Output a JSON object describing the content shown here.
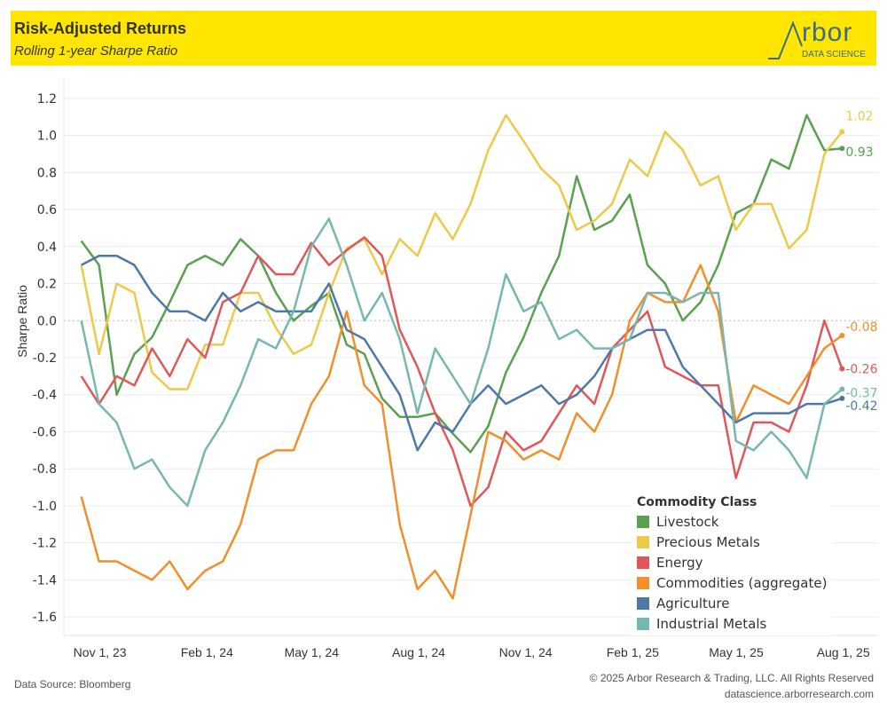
{
  "header": {
    "title": "Risk-Adjusted Returns",
    "subtitle": "Rolling 1-year Sharpe Ratio",
    "logo_word": "rbor",
    "logo_sub": "DATA SCIENCE"
  },
  "footer": {
    "source": "Data Source: Bloomberg",
    "copyright": "© 2025 Arbor Research & Trading, LLC. All Rights Reserved",
    "website": "datascience.arborresearch.com"
  },
  "colors": {
    "header_bg": "#FFE600",
    "Livestock": "#59A14F",
    "Precious Metals": "#EDC948",
    "Energy": "#E15759",
    "Commodities (aggregate)": "#F28E2B",
    "Agriculture": "#4E79A7",
    "Industrial Metals": "#76B7B2"
  },
  "chart_data": {
    "type": "line",
    "title": "Risk-Adjusted Returns",
    "subtitle": "Rolling 1-year Sharpe Ratio",
    "xlabel": "",
    "ylabel": "Sharpe Ratio",
    "ylim": [
      -1.7,
      1.3
    ],
    "yticks": [
      "1.2",
      "1.0",
      "0.8",
      "0.6",
      "0.4",
      "0.2",
      "0.0",
      "-0.2",
      "-0.4",
      "-0.6",
      "-0.8",
      "-1.0",
      "-1.2",
      "-1.4",
      "-1.6"
    ],
    "ytick_values": [
      1.2,
      1.0,
      0.8,
      0.6,
      0.4,
      0.2,
      0.0,
      -0.2,
      -0.4,
      -0.6,
      -0.8,
      -1.0,
      -1.2,
      -1.4,
      -1.6
    ],
    "xticks": [
      "Nov 1, 23",
      "Feb 1, 24",
      "May 1, 24",
      "Aug 1, 24",
      "Nov 1, 24",
      "Feb 1, 25",
      "May 1, 25",
      "Aug 1, 25"
    ],
    "xtick_dates": [
      "2023-11-01",
      "2024-02-01",
      "2024-05-01",
      "2024-08-01",
      "2024-11-01",
      "2025-02-01",
      "2025-05-01",
      "2025-08-01"
    ],
    "x_start": "2023-10-16",
    "x_end": "2025-07-31",
    "x_range": [
      "2023-10-01",
      "2025-08-31"
    ],
    "grid": true,
    "zero_line": "dotted",
    "legend_title": "Commodity Class",
    "legend_position": "bottom-right",
    "series": [
      {
        "name": "Livestock",
        "end_label": "0.93",
        "values": [
          0.43,
          0.3,
          -0.4,
          -0.18,
          -0.09,
          0.1,
          0.3,
          0.35,
          0.3,
          0.44,
          0.35,
          0.15,
          0.0,
          0.08,
          0.15,
          -0.13,
          -0.18,
          -0.42,
          -0.52,
          -0.52,
          -0.5,
          -0.61,
          -0.71,
          -0.57,
          -0.28,
          -0.09,
          0.15,
          0.35,
          0.78,
          0.49,
          0.54,
          0.68,
          0.3,
          0.2,
          0.0,
          0.1,
          0.3,
          0.58,
          0.63,
          0.87,
          0.82,
          1.11,
          0.92,
          0.93
        ]
      },
      {
        "name": "Precious Metals",
        "end_label": "1.02",
        "values": [
          0.3,
          -0.18,
          0.2,
          0.15,
          -0.28,
          -0.37,
          -0.37,
          -0.13,
          -0.13,
          0.15,
          0.15,
          -0.04,
          -0.18,
          -0.13,
          0.15,
          0.39,
          0.44,
          0.25,
          0.44,
          0.35,
          0.58,
          0.44,
          0.63,
          0.92,
          1.11,
          0.97,
          0.82,
          0.73,
          0.49,
          0.54,
          0.63,
          0.87,
          0.78,
          1.02,
          0.92,
          0.73,
          0.78,
          0.49,
          0.63,
          0.63,
          0.39,
          0.49,
          0.9,
          1.02
        ]
      },
      {
        "name": "Energy",
        "end_label": "-0.26",
        "values": [
          -0.3,
          -0.45,
          -0.3,
          -0.35,
          -0.15,
          -0.3,
          -0.1,
          -0.2,
          0.1,
          0.15,
          0.35,
          0.25,
          0.25,
          0.42,
          0.3,
          0.38,
          0.45,
          0.35,
          -0.05,
          -0.25,
          -0.5,
          -0.7,
          -1.0,
          -0.9,
          -0.6,
          -0.7,
          -0.65,
          -0.5,
          -0.35,
          -0.45,
          -0.15,
          -0.05,
          0.05,
          -0.25,
          -0.3,
          -0.35,
          -0.35,
          -0.85,
          -0.55,
          -0.55,
          -0.6,
          -0.35,
          0.0,
          -0.26
        ]
      },
      {
        "name": "Commodities (aggregate)",
        "end_label": "-0.08",
        "values": [
          -0.95,
          -1.3,
          -1.3,
          -1.35,
          -1.4,
          -1.3,
          -1.45,
          -1.35,
          -1.3,
          -1.1,
          -0.75,
          -0.7,
          -0.7,
          -0.45,
          -0.3,
          0.05,
          -0.35,
          -0.45,
          -1.1,
          -1.45,
          -1.35,
          -1.5,
          -1.05,
          -0.6,
          -0.65,
          -0.75,
          -0.7,
          -0.75,
          -0.5,
          -0.6,
          -0.4,
          0.0,
          0.15,
          0.1,
          0.1,
          0.3,
          0.05,
          -0.55,
          -0.35,
          -0.4,
          -0.45,
          -0.3,
          -0.15,
          -0.08
        ]
      },
      {
        "name": "Agriculture",
        "end_label": "-0.42",
        "values": [
          0.3,
          0.35,
          0.35,
          0.3,
          0.15,
          0.05,
          0.05,
          0.0,
          0.15,
          0.05,
          0.1,
          0.05,
          0.05,
          0.05,
          0.2,
          -0.05,
          -0.1,
          -0.25,
          -0.4,
          -0.7,
          -0.55,
          -0.6,
          -0.45,
          -0.35,
          -0.45,
          -0.4,
          -0.35,
          -0.45,
          -0.4,
          -0.3,
          -0.15,
          -0.1,
          -0.05,
          -0.05,
          -0.25,
          -0.35,
          -0.45,
          -0.55,
          -0.5,
          -0.5,
          -0.5,
          -0.45,
          -0.45,
          -0.42
        ]
      },
      {
        "name": "Industrial Metals",
        "end_label": "-0.37",
        "values": [
          0.0,
          -0.45,
          -0.55,
          -0.8,
          -0.75,
          -0.9,
          -1.0,
          -0.7,
          -0.55,
          -0.35,
          -0.1,
          -0.15,
          0.05,
          0.4,
          0.55,
          0.3,
          0.0,
          0.15,
          -0.1,
          -0.5,
          -0.15,
          -0.3,
          -0.45,
          -0.15,
          0.25,
          0.05,
          0.1,
          -0.1,
          -0.05,
          -0.15,
          -0.15,
          -0.1,
          0.15,
          0.15,
          0.1,
          0.15,
          0.15,
          -0.65,
          -0.7,
          -0.6,
          -0.7,
          -0.85,
          -0.45,
          -0.37
        ]
      }
    ]
  }
}
